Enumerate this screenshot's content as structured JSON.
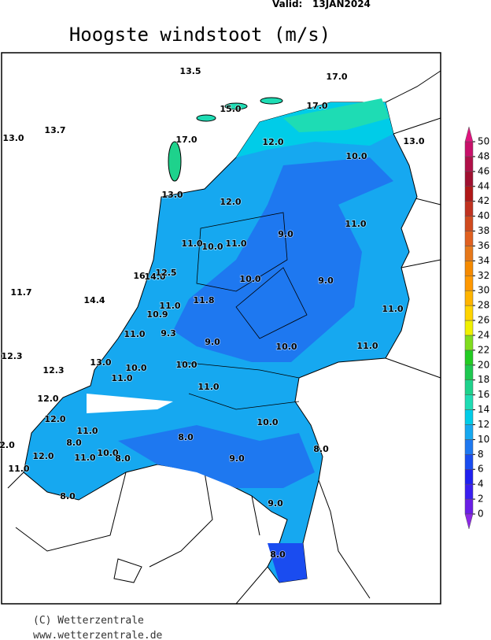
{
  "header": {
    "valid_label": "Valid:",
    "valid_date": "13JAN2024",
    "title": "Hoogste windstoot (m/s)"
  },
  "stations": [
    "13.5",
    "17.0",
    "15.0",
    "17.0",
    "13.0",
    "13.7",
    "17.0",
    "12.0",
    "13.0",
    "10.0",
    "13.0",
    "12.0",
    "11.0",
    "9.0",
    "11.0",
    "10.0",
    "11.0",
    "16",
    "14.0",
    "12.5",
    "10.0",
    "9.0",
    "11.7",
    "14.4",
    "11.8",
    "11.0",
    "10.9",
    "11.0",
    "11.0",
    "9.3",
    "9.0",
    "10.0",
    "11.0",
    "12.3",
    "13.0",
    "12.3",
    "10.0",
    "10.0",
    "11.0",
    "11.0",
    "12.0",
    "12.0",
    "10.0",
    "11.0",
    "8.0",
    "8.0",
    "2.0",
    "10.0",
    "8.0",
    "12.0",
    "11.0",
    "8.0",
    "9.0",
    "11.0",
    "8.0",
    "9.0",
    "8.0"
  ],
  "colorbar": {
    "ticks": [
      0,
      2,
      4,
      6,
      8,
      10,
      12,
      14,
      16,
      18,
      20,
      22,
      24,
      26,
      28,
      30,
      32,
      34,
      36,
      38,
      40,
      42,
      44,
      46,
      48,
      50
    ],
    "colors": [
      "#6a1ee6",
      "#3a1ef0",
      "#2020f0",
      "#1a4cf0",
      "#1e78f0",
      "#16a8f0",
      "#00cce8",
      "#1edcb4",
      "#1ed28c",
      "#1ec850",
      "#22cc22",
      "#80dc1e",
      "#f0f000",
      "#ffd400",
      "#ffb400",
      "#ff9800",
      "#f58a00",
      "#e6781a",
      "#e06020",
      "#d04a1e",
      "#c03220",
      "#b01818",
      "#a01030",
      "#b01048",
      "#c8106a"
    ],
    "below_color": "#8c28e6",
    "above_color": "#e0147f"
  },
  "credits": {
    "copyright": "(C) Wetterzentrale",
    "url": "www.wetterzentrale.de"
  }
}
